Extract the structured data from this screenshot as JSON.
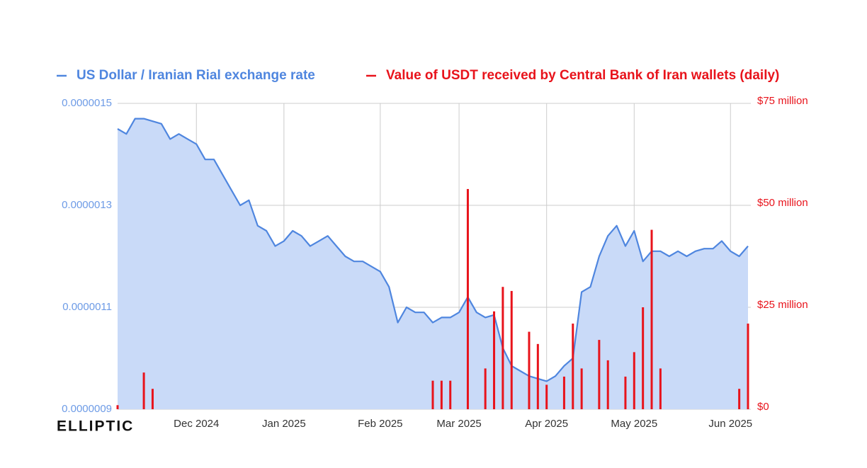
{
  "chart_data": {
    "type": "line-bar",
    "watermark": "ELLIPTIC",
    "categories": [
      null,
      null,
      null,
      null,
      null,
      null,
      null,
      null,
      null,
      "Dec 2024",
      null,
      null,
      null,
      null,
      null,
      null,
      null,
      null,
      null,
      "Jan 2025",
      null,
      null,
      null,
      null,
      null,
      null,
      null,
      null,
      null,
      null,
      "Feb 2025",
      null,
      null,
      null,
      null,
      null,
      null,
      null,
      null,
      "Mar 2025",
      null,
      null,
      null,
      null,
      null,
      null,
      null,
      null,
      null,
      "Apr 2025",
      null,
      null,
      null,
      null,
      null,
      null,
      null,
      null,
      null,
      "May 2025",
      null,
      null,
      null,
      null,
      null,
      null,
      null,
      null,
      null,
      null,
      "Jun 2025",
      null,
      null
    ],
    "series": [
      {
        "name": "US Dollar / Iranian Rial exchange rate",
        "color": "#4f86df",
        "fill": "#c9daf8",
        "kind": "area",
        "axis": "y",
        "values": [
          1.45e-06,
          1.44e-06,
          1.47e-06,
          1.47e-06,
          1.465e-06,
          1.46e-06,
          1.43e-06,
          1.44e-06,
          1.43e-06,
          1.42e-06,
          1.39e-06,
          1.39e-06,
          1.36e-06,
          1.33e-06,
          1.3e-06,
          1.31e-06,
          1.26e-06,
          1.25e-06,
          1.22e-06,
          1.23e-06,
          1.25e-06,
          1.24e-06,
          1.22e-06,
          1.23e-06,
          1.24e-06,
          1.22e-06,
          1.2e-06,
          1.19e-06,
          1.19e-06,
          1.18e-06,
          1.17e-06,
          1.14e-06,
          1.07e-06,
          1.1e-06,
          1.09e-06,
          1.09e-06,
          1.07e-06,
          1.08e-06,
          1.08e-06,
          1.09e-06,
          1.12e-06,
          1.09e-06,
          1.08e-06,
          1.085e-06,
          1.02e-06,
          9.85e-07,
          9.75e-07,
          9.65e-07,
          9.6e-07,
          9.55e-07,
          9.65e-07,
          9.85e-07,
          1e-06,
          1.13e-06,
          1.14e-06,
          1.2e-06,
          1.24e-06,
          1.26e-06,
          1.22e-06,
          1.25e-06,
          1.19e-06,
          1.21e-06,
          1.21e-06,
          1.2e-06,
          1.21e-06,
          1.2e-06,
          1.21e-06,
          1.215e-06,
          1.215e-06,
          1.23e-06,
          1.21e-06,
          1.2e-06,
          1.22e-06
        ]
      },
      {
        "name": "Value of USDT received by Central Bank of Iran wallets (daily)",
        "color": "#e8131b",
        "kind": "bar",
        "axis": "y2",
        "values": [
          1,
          0,
          0,
          9,
          5,
          0,
          0,
          0,
          0,
          0,
          0,
          0,
          0,
          0,
          0,
          0,
          0,
          0,
          0,
          0,
          0,
          0,
          0,
          0,
          0,
          0,
          0,
          0,
          0,
          0,
          0,
          0,
          0,
          0,
          0,
          0,
          7,
          7,
          7,
          0,
          54,
          0,
          10,
          24,
          30,
          29,
          0,
          19,
          16,
          6,
          0,
          8,
          21,
          10,
          0,
          17,
          12,
          0,
          8,
          14,
          25,
          44,
          10,
          0,
          0,
          0,
          0,
          0,
          0,
          0,
          0,
          5,
          21
        ]
      }
    ],
    "ylim": [
      9e-07,
      1.5e-06
    ],
    "yticks": [
      {
        "value": 9e-07,
        "label": "0.0000009"
      },
      {
        "value": 1.1e-06,
        "label": "0.0000011"
      },
      {
        "value": 1.3e-06,
        "label": "0.0000013"
      },
      {
        "value": 1.5e-06,
        "label": "0.0000015"
      }
    ],
    "y2lim": [
      0,
      75
    ],
    "y2ticks": [
      {
        "value": 0,
        "label": "$0"
      },
      {
        "value": 25,
        "label": "$25 million"
      },
      {
        "value": 50,
        "label": "$50 million"
      },
      {
        "value": 75,
        "label": "$75 million"
      }
    ],
    "grid": true
  }
}
